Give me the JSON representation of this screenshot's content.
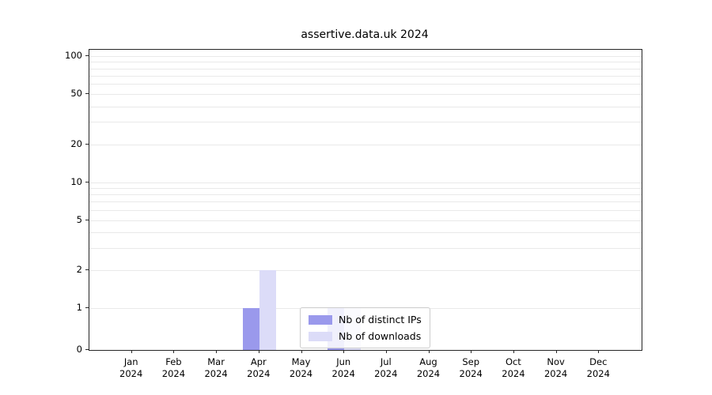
{
  "chart_data": {
    "type": "bar",
    "title": "assertive.data.uk 2024",
    "categories": [
      "Jan 2024",
      "Feb 2024",
      "Mar 2024",
      "Apr 2024",
      "May 2024",
      "Jun 2024",
      "Jul 2024",
      "Aug 2024",
      "Sep 2024",
      "Oct 2024",
      "Nov 2024",
      "Dec 2024"
    ],
    "series": [
      {
        "name": "Nb of distinct IPs",
        "color": "#9a99ec",
        "values": [
          0,
          0,
          0,
          1,
          0,
          1,
          0,
          0,
          0,
          0,
          0,
          0
        ]
      },
      {
        "name": "Nb of downloads",
        "color": "#dcdcf8",
        "values": [
          0,
          0,
          0,
          2,
          0,
          1,
          0,
          0,
          0,
          0,
          0,
          0
        ]
      }
    ],
    "yscale": "log-with-linear-zero",
    "y_ticks": [
      0,
      1,
      2,
      5,
      10,
      20,
      50,
      100
    ],
    "y_gridlines": [
      1,
      2,
      3,
      4,
      5,
      6,
      7,
      8,
      9,
      10,
      20,
      30,
      40,
      50,
      60,
      70,
      80,
      90,
      100
    ],
    "ylim": [
      0,
      120
    ],
    "grid": "horizontal-minor",
    "legend_position": "inside-bottom-center"
  }
}
